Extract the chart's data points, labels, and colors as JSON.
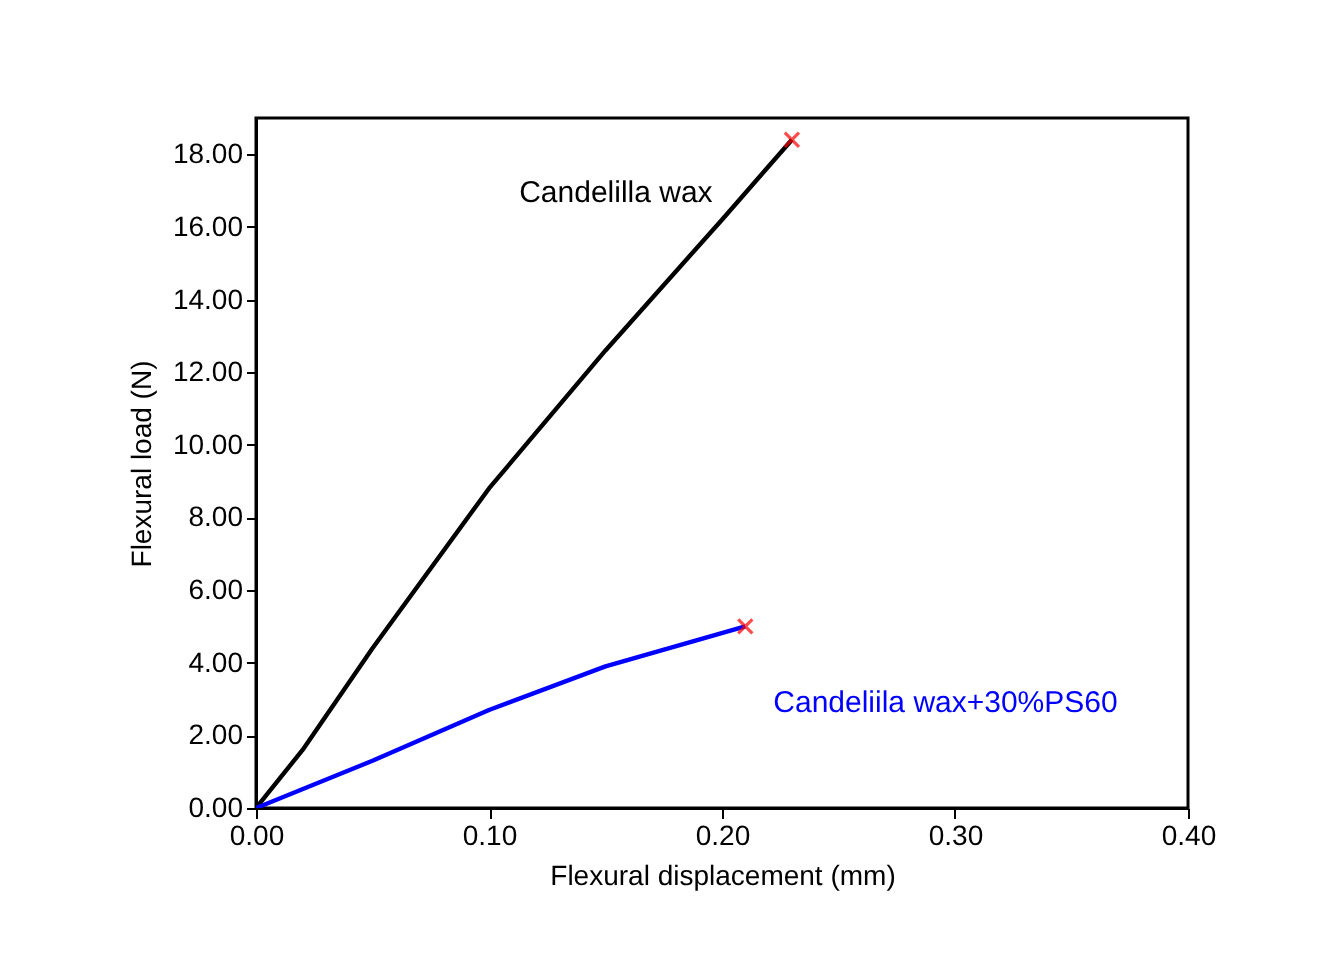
{
  "chart_data": {
    "type": "line",
    "xlabel": "Flexural displacement (mm)",
    "ylabel": "Flexural load (N)",
    "xlim": [
      0,
      0.4
    ],
    "ylim": [
      0,
      19
    ],
    "xticks": [
      {
        "value": 0,
        "label": "0.00"
      },
      {
        "value": 0.1,
        "label": "0.10"
      },
      {
        "value": 0.2,
        "label": "0.20"
      },
      {
        "value": 0.3,
        "label": "0.30"
      },
      {
        "value": 0.4,
        "label": "0.40"
      }
    ],
    "yticks": [
      {
        "value": 0,
        "label": "0.00"
      },
      {
        "value": 2,
        "label": "2.00"
      },
      {
        "value": 4,
        "label": "4.00"
      },
      {
        "value": 6,
        "label": "6.00"
      },
      {
        "value": 8,
        "label": "8.00"
      },
      {
        "value": 10,
        "label": "10.00"
      },
      {
        "value": 12,
        "label": "12.00"
      },
      {
        "value": 14,
        "label": "14.00"
      },
      {
        "value": 16,
        "label": "16.00"
      },
      {
        "value": 18,
        "label": "18.00"
      }
    ],
    "grid": false,
    "series": [
      {
        "name": "Candelilla wax",
        "color": "#000000",
        "x": [
          0,
          0.02,
          0.05,
          0.1,
          0.15,
          0.2,
          0.23
        ],
        "values": [
          0,
          1.6,
          4.4,
          8.8,
          12.6,
          16.2,
          18.4
        ]
      },
      {
        "name": "Candeliila wax+30%PS60",
        "color": "#0000ff",
        "x": [
          0,
          0.05,
          0.1,
          0.15,
          0.21
        ],
        "values": [
          0,
          1.3,
          2.7,
          3.9,
          5.0
        ]
      },
      {
        "type": "scatter",
        "marker": "cross",
        "color": "#ff0000",
        "x": [
          0.23,
          0.21
        ],
        "values": [
          18.4,
          5.0
        ]
      }
    ]
  }
}
